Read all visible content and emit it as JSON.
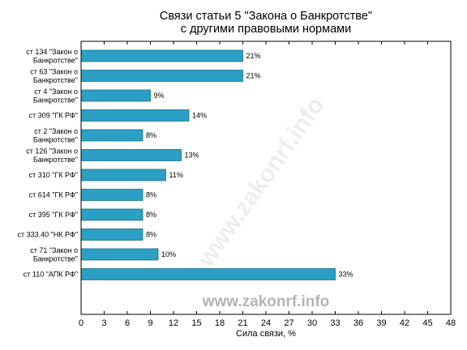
{
  "chart_data": {
    "type": "bar",
    "orientation": "horizontal",
    "title": [
      "Связи статьи 5 \"Закона о Банкротстве\"",
      "с другими правовыми нормами"
    ],
    "xlabel": "Сила связи, %",
    "ylabel": "",
    "xlim": [
      0,
      48
    ],
    "xticks": [
      "0",
      "3",
      "6",
      "9",
      "12",
      "15",
      "18",
      "21",
      "24",
      "27",
      "30",
      "33",
      "36",
      "39",
      "42",
      "45",
      "48"
    ],
    "grid": false,
    "bar_color": "#2b9fc4",
    "categories": [
      [
        "ст 134 \"Закон о",
        "Банкротстве\""
      ],
      [
        "ст 63 \"Закон о",
        "Банкротстве\""
      ],
      [
        "ст 4 \"Закон о",
        "Банкротстве\""
      ],
      [
        "ст 309 \"ГК РФ\""
      ],
      [
        "ст 2 \"Закон о",
        "Банкротстве\""
      ],
      [
        "ст 126 \"Закон о",
        "Банкротстве\""
      ],
      [
        "ст 310 \"ГК РФ\""
      ],
      [
        "ст 614 \"ГК РФ\""
      ],
      [
        "ст 395 \"ГК РФ\""
      ],
      [
        "ст 333.40 \"НК РФ\""
      ],
      [
        "ст 71 \"Закон о",
        "Банкротстве\""
      ],
      [
        "ст 110 \"АПК РФ\""
      ]
    ],
    "values": [
      21,
      21,
      9,
      14,
      8,
      13,
      11,
      8,
      8,
      8,
      10,
      33
    ],
    "value_labels": [
      "21%",
      "21%",
      "9%",
      "14%",
      "8%",
      "13%",
      "11%",
      "8%",
      "8%",
      "8%",
      "10%",
      "33%"
    ]
  },
  "watermark": {
    "text": "www.zakonrf.info",
    "diagonal_text": "www.zakonrf.info"
  }
}
